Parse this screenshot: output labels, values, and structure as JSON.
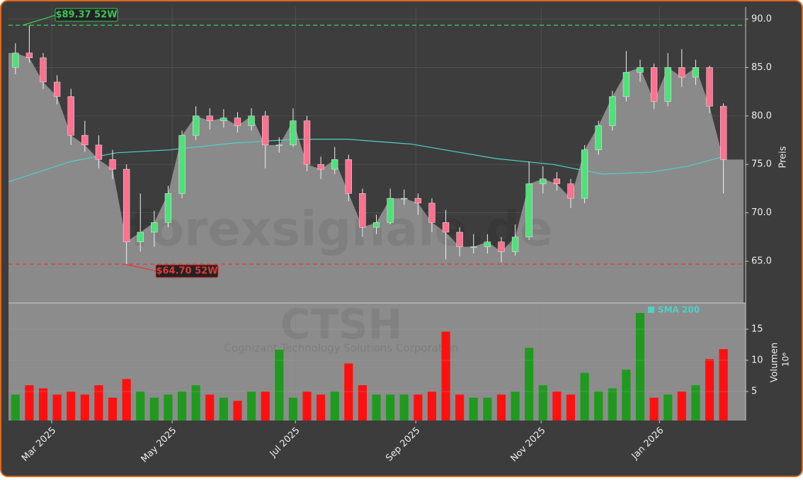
{
  "chart_data": {
    "type": "candlestick",
    "watermark": "forexsignale.de",
    "ticker": "CTSH",
    "company": "Cognizant Technology Solutions Corporation",
    "y_label": "Preis",
    "volume_label": "Volumen",
    "volume_unit": "10⁶",
    "categories": [
      null,
      null,
      null,
      null,
      null,
      null,
      null,
      null,
      null,
      null,
      null,
      null,
      null,
      null,
      null,
      null,
      null,
      null,
      null,
      null,
      null,
      null,
      null,
      null,
      null,
      null,
      null,
      null,
      null,
      null,
      null,
      null,
      null,
      null,
      null,
      null,
      null,
      null,
      null,
      null,
      null,
      null,
      null,
      null,
      null,
      null,
      null,
      null,
      null,
      null,
      null,
      null
    ],
    "xlim": [
      -0.5,
      52.6
    ],
    "xticks": [
      {
        "value": 2.61,
        "label": "Mar 2025"
      },
      {
        "value": 11.29,
        "label": "May 2025"
      },
      {
        "value": 20.17,
        "label": "Jul 2025"
      },
      {
        "value": 28.84,
        "label": "Sep 2025"
      },
      {
        "value": 37.87,
        "label": "Nov 2025"
      },
      {
        "value": 46.39,
        "label": "Jan 2026"
      }
    ],
    "open": [
      85,
      86.5,
      86,
      83.5,
      82,
      78,
      77,
      75.5,
      74.5,
      67,
      68,
      69,
      72,
      78,
      80,
      79.5,
      79.8,
      79,
      80,
      77,
      77,
      79.5,
      75,
      74.5,
      75.5,
      72,
      68.5,
      69,
      71.5,
      71.5,
      71,
      69,
      68,
      66.5,
      66.5,
      67,
      66,
      67.5,
      73,
      73.5,
      73,
      71.5,
      76.5,
      79,
      82,
      84.5,
      85,
      81.5,
      85,
      84,
      85,
      81
    ],
    "high": [
      87.5,
      89.37,
      86.5,
      84.2,
      82.8,
      79.5,
      78,
      76.5,
      75,
      72,
      70.2,
      72.8,
      78.5,
      81,
      80.8,
      80.7,
      80.4,
      80.8,
      80.5,
      77.8,
      80.8,
      80,
      75.8,
      76.8,
      76,
      72.5,
      69.8,
      72.5,
      72.4,
      72,
      71.5,
      70.3,
      68.5,
      67.8,
      67.8,
      67.5,
      68.8,
      75.3,
      74.8,
      74.2,
      73.5,
      77,
      79.5,
      82.6,
      86.7,
      85.8,
      85.4,
      86.5,
      86.9,
      85.8,
      85.2,
      81.3
    ],
    "low": [
      84.3,
      85.5,
      82.8,
      81.2,
      77,
      76.3,
      74.6,
      73.5,
      64.7,
      66,
      66.5,
      68.5,
      71.5,
      77.5,
      78.6,
      78.8,
      78.3,
      78.5,
      74.6,
      76.2,
      76.8,
      74.3,
      73.5,
      74,
      71.2,
      67.5,
      67.8,
      68.8,
      70.8,
      69.8,
      68,
      65.2,
      65.5,
      65.8,
      65.8,
      64.9,
      65.6,
      67.2,
      72,
      72.3,
      70.5,
      71,
      76,
      78.5,
      81.5,
      83.5,
      80.7,
      81,
      83,
      83.2,
      80.3,
      72
    ],
    "close": [
      86.5,
      86,
      83.5,
      82,
      78,
      77,
      75.5,
      74.5,
      67,
      68,
      69,
      72,
      78,
      80,
      79.5,
      79.8,
      79,
      80,
      77,
      77,
      79.5,
      75,
      74.5,
      75.5,
      72,
      68.5,
      69,
      71.5,
      71.5,
      71,
      69,
      68,
      66.5,
      66.5,
      67,
      66,
      67.5,
      73,
      73.5,
      73,
      71.5,
      76.5,
      79,
      82,
      84.5,
      85,
      81.5,
      85,
      84,
      85,
      81,
      75.5
    ],
    "up_color": "#4fe07a",
    "down_color": "#ff6f8e",
    "area_color": "#8a8a8a",
    "ylim": [
      60.69,
      91.24
    ],
    "yticks": [
      {
        "value": 65,
        "label": "65.0"
      },
      {
        "value": 70,
        "label": "70.0"
      },
      {
        "value": 75,
        "label": "75.0"
      },
      {
        "value": 80,
        "label": "80.0"
      },
      {
        "value": 85,
        "label": "85.0"
      },
      {
        "value": 90,
        "label": "90.0"
      }
    ],
    "grid": true,
    "sma": {
      "name": "SMA 200",
      "color": "#4fd1c5",
      "x": [
        -0.5,
        4,
        7.3,
        11.1,
        15.7,
        20.3,
        23.9,
        28.5,
        34.6,
        38.7,
        42.3,
        45.8,
        48.4,
        51
      ],
      "values": [
        73.2,
        75.3,
        76.2,
        76.5,
        77.2,
        77.6,
        77.6,
        77.1,
        75.6,
        75,
        74,
        74.2,
        74.8,
        75.8
      ]
    },
    "high_line": {
      "value": 89.37,
      "label": "$89.37 52W",
      "color": "#3cc45a"
    },
    "low_line": {
      "value": 64.7,
      "label": "$64.70 52W",
      "color": "#e03a3a"
    },
    "volume": {
      "values": [
        4.5,
        6,
        5.5,
        4.5,
        5,
        4.5,
        6,
        4,
        7,
        5,
        4,
        4.5,
        5,
        6,
        4.5,
        4,
        3.5,
        5,
        5,
        11.7,
        4,
        5,
        4.5,
        5,
        9.5,
        6,
        4.5,
        4.5,
        4.5,
        4.5,
        5,
        14.6,
        4.5,
        4,
        4,
        4.5,
        5,
        12,
        6,
        5,
        4.5,
        8,
        5,
        5.5,
        8.5,
        17.6,
        4,
        4.5,
        5,
        6,
        10.2,
        11.8
      ],
      "ylim": [
        0.34,
        19.2
      ],
      "yticks": [
        5,
        10,
        15
      ],
      "up_color": "#1f9a1f",
      "down_color": "#ff1010"
    }
  }
}
